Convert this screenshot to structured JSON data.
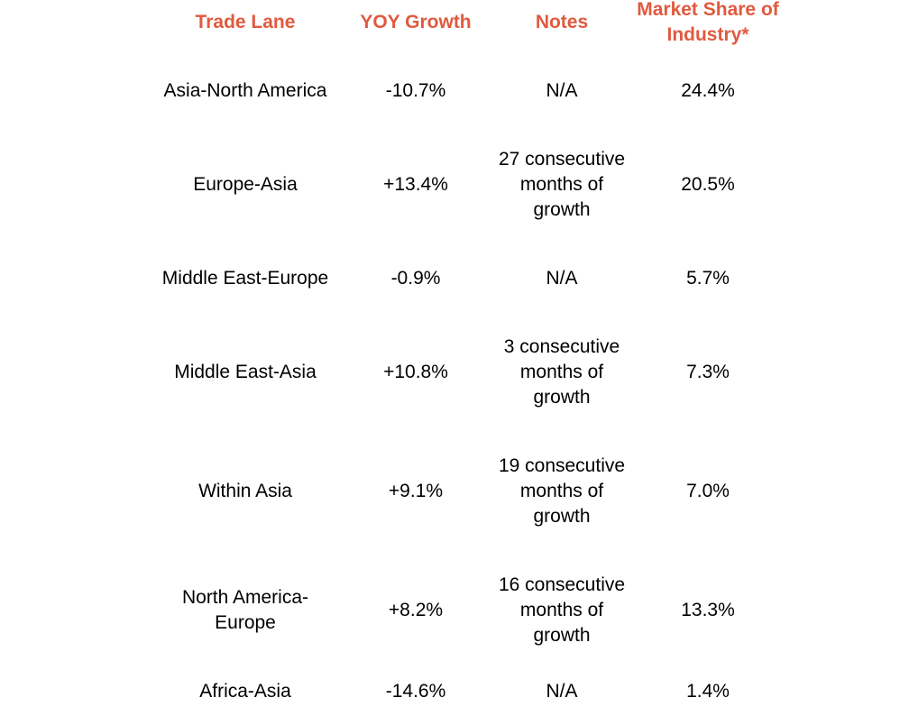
{
  "colors": {
    "header": "#e05a3f",
    "text": "#000000",
    "background": "#ffffff"
  },
  "chart_data": {
    "type": "table",
    "columns": [
      "Trade Lane",
      "YOY Growth",
      "Notes",
      "Market Share of Industry*"
    ],
    "rows": [
      {
        "lane": "Asia-North America",
        "yoy": "-10.7%",
        "notes": "N/A",
        "share": "24.4%"
      },
      {
        "lane": "Europe-Asia",
        "yoy": "+13.4%",
        "notes": "27 consecutive months of growth",
        "share": "20.5%"
      },
      {
        "lane": "Middle East-Europe",
        "yoy": "-0.9%",
        "notes": "N/A",
        "share": "5.7%"
      },
      {
        "lane": "Middle East-Asia",
        "yoy": "+10.8%",
        "notes": "3 consecutive months of growth",
        "share": "7.3%"
      },
      {
        "lane": "Within Asia",
        "yoy": "+9.1%",
        "notes": "19 consecutive months of growth",
        "share": "7.0%"
      },
      {
        "lane": "North America-Europe",
        "yoy": "+8.2%",
        "notes": "16 consecutive months of growth",
        "share": "13.3%"
      },
      {
        "lane": "Africa-Asia",
        "yoy": "-14.6%",
        "notes": "N/A",
        "share": "1.4%"
      }
    ]
  }
}
